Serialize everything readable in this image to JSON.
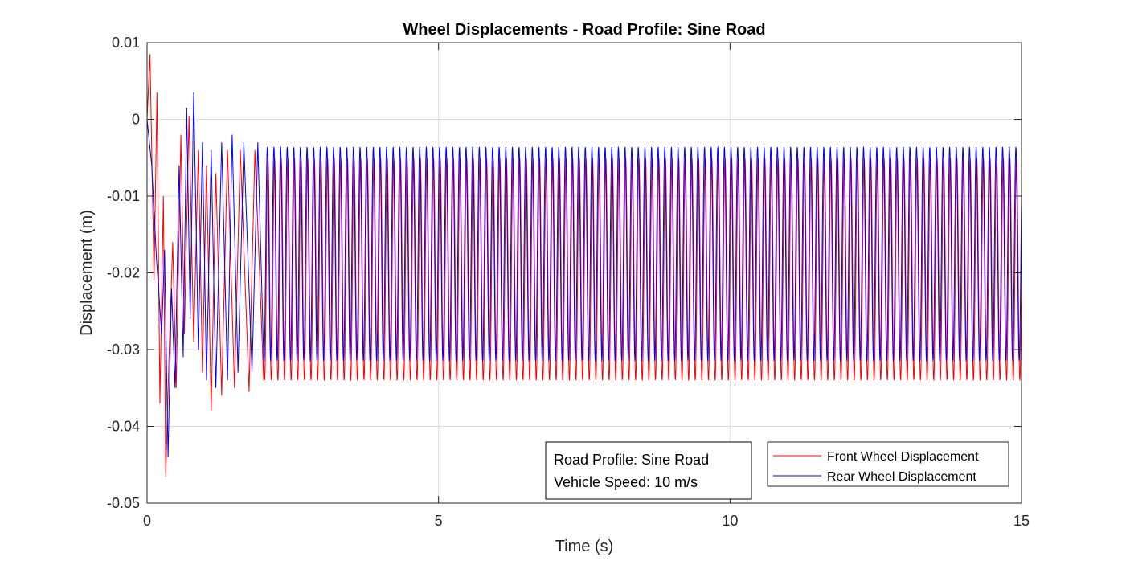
{
  "chart_data": {
    "type": "line",
    "title": "Wheel Displacements - Road Profile: Sine Road",
    "xlabel": "Time (s)",
    "ylabel": "Displacement (m)",
    "xlim": [
      0,
      15
    ],
    "ylim": [
      -0.05,
      0.01
    ],
    "xticks": [
      0,
      5,
      10,
      15
    ],
    "xtick_labels": [
      "0",
      "5",
      "10",
      "15"
    ],
    "yticks": [
      0.01,
      0,
      -0.01,
      -0.02,
      -0.03,
      -0.04,
      -0.05
    ],
    "ytick_labels": [
      "0.01",
      "0",
      "-0.01",
      "-0.02",
      "-0.03",
      "-0.04",
      "-0.05"
    ],
    "grid": true,
    "legend_position": "bottom-right",
    "series": [
      {
        "name": "Front Wheel Displacement",
        "color": "#ff0000",
        "steady_state": {
          "frequency_hz": 8.8,
          "max": -0.005,
          "min": -0.034
        },
        "transient_points": [
          [
            0,
            0
          ],
          [
            0.05,
            0.0085
          ],
          [
            0.12,
            -0.021
          ],
          [
            0.17,
            0.0035
          ],
          [
            0.22,
            -0.037
          ],
          [
            0.28,
            -0.01
          ],
          [
            0.32,
            -0.0465
          ],
          [
            0.38,
            -0.03
          ],
          [
            0.44,
            -0.016
          ],
          [
            0.5,
            -0.035
          ],
          [
            0.58,
            -0.002
          ],
          [
            0.64,
            -0.028
          ],
          [
            0.72,
            0.0005
          ],
          [
            0.8,
            -0.029
          ],
          [
            0.88,
            -0.004
          ],
          [
            0.95,
            -0.033
          ],
          [
            1.02,
            -0.006
          ],
          [
            1.1,
            -0.038
          ],
          [
            1.18,
            -0.007
          ],
          [
            1.28,
            -0.036
          ],
          [
            1.38,
            -0.004
          ],
          [
            1.5,
            -0.035
          ],
          [
            1.6,
            -0.004
          ],
          [
            1.75,
            -0.0355
          ],
          [
            1.85,
            -0.004
          ],
          [
            2.0,
            -0.034
          ]
        ]
      },
      {
        "name": "Rear Wheel Displacement",
        "color": "#0000ff",
        "steady_state": {
          "frequency_hz": 8.8,
          "max": -0.0036,
          "min": -0.0315
        },
        "transient_points": [
          [
            0,
            0
          ],
          [
            0.08,
            -0.006
          ],
          [
            0.16,
            -0.018
          ],
          [
            0.25,
            -0.028
          ],
          [
            0.3,
            -0.017
          ],
          [
            0.36,
            -0.044
          ],
          [
            0.42,
            -0.022
          ],
          [
            0.48,
            -0.035
          ],
          [
            0.55,
            -0.006
          ],
          [
            0.62,
            -0.031
          ],
          [
            0.68,
            0.0015
          ],
          [
            0.74,
            -0.026
          ],
          [
            0.8,
            0.0035
          ],
          [
            0.88,
            -0.03
          ],
          [
            0.95,
            -0.003
          ],
          [
            1.02,
            -0.034
          ],
          [
            1.1,
            -0.004
          ],
          [
            1.18,
            -0.035
          ],
          [
            1.28,
            -0.003
          ],
          [
            1.38,
            -0.034
          ],
          [
            1.46,
            -0.002
          ],
          [
            1.56,
            -0.033
          ],
          [
            1.66,
            -0.003
          ],
          [
            1.8,
            -0.033
          ],
          [
            1.9,
            -0.003
          ],
          [
            2.0,
            -0.031
          ]
        ]
      }
    ]
  },
  "annotation": {
    "line1": "Road Profile: Sine Road",
    "line2": "Vehicle Speed: 10 m/s"
  }
}
